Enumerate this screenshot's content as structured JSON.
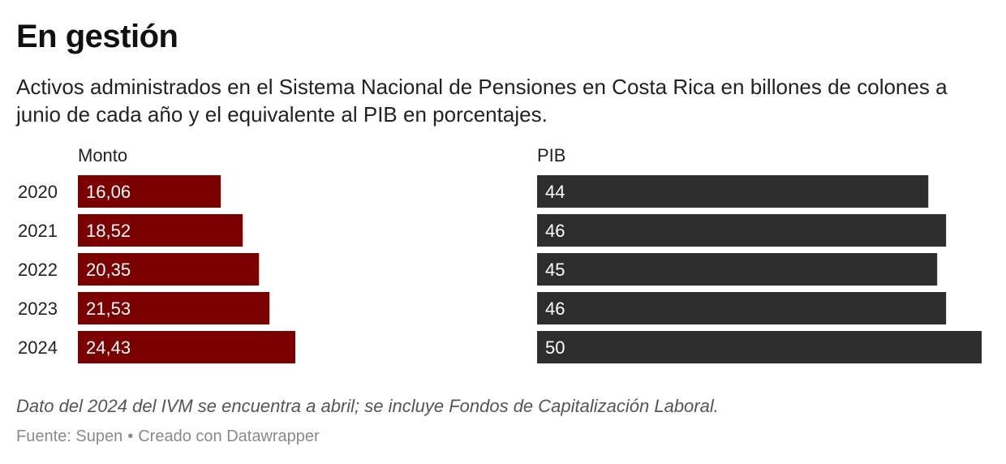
{
  "header": {
    "title": "En gestión",
    "subtitle": "Activos administrados en el Sistema Nacional de Pensiones en Costa Rica en billones de colones a junio de cada año y el equivalente al PIB en porcentajes."
  },
  "chart_data": {
    "type": "bar",
    "orientation": "horizontal",
    "categories": [
      "2020",
      "2021",
      "2022",
      "2023",
      "2024"
    ],
    "series": [
      {
        "name": "Monto",
        "values": [
          16.06,
          18.52,
          20.35,
          21.53,
          24.43
        ],
        "labels": [
          "16,06",
          "18,52",
          "20,35",
          "21,53",
          "24,43"
        ],
        "color": "#7b0000",
        "xlim": [
          0,
          24.43
        ]
      },
      {
        "name": "PIB",
        "values": [
          44,
          46,
          45,
          46,
          50
        ],
        "labels": [
          "44",
          "46",
          "45",
          "46",
          "50"
        ],
        "color": "#2d2d2d",
        "xlim": [
          0,
          50
        ]
      }
    ],
    "title": "En gestión",
    "xlabel": "",
    "ylabel": ""
  },
  "footer": {
    "note": "Dato del 2024 del IVM se encuentra a abril; se incluye Fondos de Capitalización Laboral.",
    "source": "Fuente: Supen",
    "separator": "•",
    "credit": "Creado con Datawrapper"
  },
  "colors": {
    "label_text": "#ffffff",
    "axis_text": "#222222"
  }
}
